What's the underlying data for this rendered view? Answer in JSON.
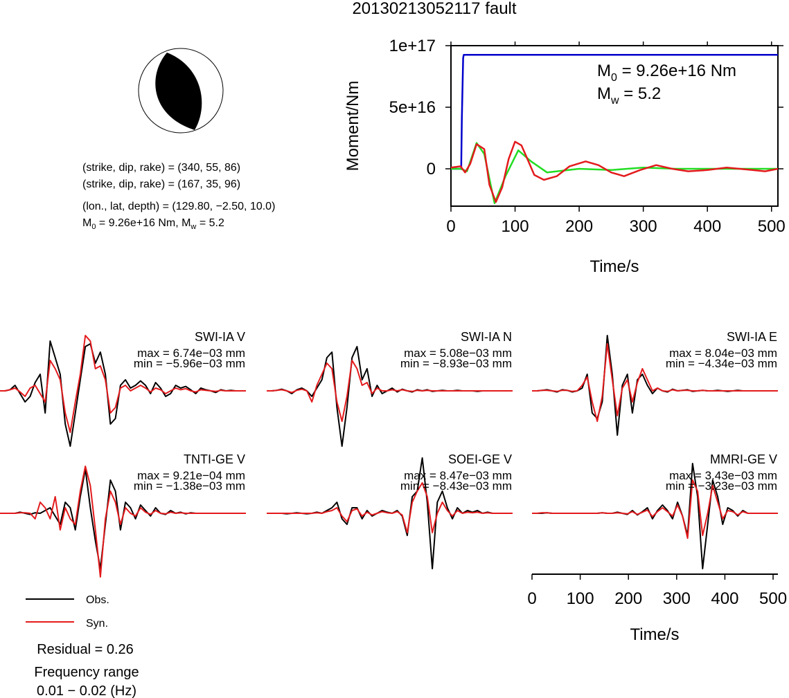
{
  "title": "20130213052117 fault",
  "info": {
    "np1": "(strike, dip, rake) = (340, 55, 86)",
    "np2": "(strike, dip, rake) = (167, 35, 96)",
    "location": "(lon., lat, depth) = (129.80, −2.50, 10.0)",
    "moment_line": {
      "m0": "M",
      "m0_sub": "0",
      "m0_rest": " = 9.26e+16 Nm, M",
      "mw_sub": "w",
      "mw_rest": " = 5.2"
    }
  },
  "legend": {
    "obs": "Obs.",
    "syn": "Syn."
  },
  "residual": "Residual = 0.26",
  "freq": {
    "label": "Frequency range",
    "range": "0.01 − 0.02 (Hz)"
  },
  "colors": {
    "obs": "#000000",
    "syn": "#e31a1c",
    "cumulative": "#0000cc",
    "rate_green": "#22dd22",
    "rate_red": "#e31a1c"
  },
  "chart_data": [
    {
      "type": "line",
      "title": "",
      "xlabel": "Time/s",
      "ylabel": "Moment/Nm",
      "xlim": [
        0,
        510
      ],
      "ylim": [
        -3e+16,
        1e+17
      ],
      "xticks": [
        "0",
        "100",
        "200",
        "300",
        "400",
        "500"
      ],
      "yticks": [
        "1e+17",
        "5e+16",
        "0"
      ],
      "ytick_values": [
        1e+17,
        5e+16,
        0
      ],
      "annotation_m0": {
        "sym": "M",
        "sub": "0",
        "rest": " = 9.26e+16 Nm"
      },
      "annotation_mw": {
        "sym": "M",
        "sub": "w",
        "rest": " = 5.2"
      },
      "series": [
        {
          "color": "#0000cc",
          "x": [
            0,
            16,
            17,
            19,
            20,
            510
          ],
          "y": [
            0,
            0,
            4e+16,
            9e+16,
            9.26e+16,
            9.26e+16
          ]
        },
        {
          "color": "#22dd22",
          "x": [
            0,
            15,
            25,
            40,
            52,
            68,
            85,
            105,
            125,
            150,
            200,
            250,
            300,
            350,
            400,
            450,
            500,
            510
          ],
          "y": [
            0,
            0,
            -2000000000000000.0,
            2.1e+16,
            1.2e+16,
            -2.8e+16,
            -6000000000000000.0,
            1.5e+16,
            6000000000000000.0,
            -3000000000000000.0,
            0.0,
            -1000000000000000.0,
            1000000000000000.0,
            0,
            0,
            0,
            0,
            0
          ]
        },
        {
          "color": "#e31a1c",
          "x": [
            0,
            15,
            22,
            30,
            40,
            52,
            60,
            70,
            80,
            90,
            100,
            110,
            120,
            130,
            145,
            165,
            185,
            210,
            230,
            250,
            270,
            295,
            320,
            345,
            370,
            400,
            430,
            450,
            470,
            490,
            510
          ],
          "y": [
            1000000000000000.0,
            2000000000000000.0,
            -3000000000000000.0,
            4000000000000000.0,
            2e+16,
            1.6e+16,
            -1.3e+16,
            -2.7e+16,
            -1.5e+16,
            8000000000000000.0,
            2.2e+16,
            1.9e+16,
            7000000000000000.0,
            -5000000000000000.0,
            -9000000000000000.0,
            -6000000000000000.0,
            2000000000000000.0,
            6000000000000000.0,
            3000000000000000.0,
            -3000000000000000.0,
            -6000000000000000.0,
            -1000000000000000.0,
            3000000000000000.0,
            0.0,
            -2000000000000000.0,
            -1000000000000000.0,
            1000000000000000.0,
            0.0,
            -1000000000000000.0,
            -2000000000000000.0,
            0.0
          ]
        }
      ]
    },
    {
      "type": "line",
      "title": "",
      "xlabel": "Time/s",
      "ylabel": "",
      "xlim": [
        0,
        510
      ],
      "xticks": [
        "0",
        "100",
        "200",
        "300",
        "400",
        "500"
      ],
      "panels": [
        {
          "label": "SWI-IA V",
          "max": "max = 6.74e−03 mm",
          "min": "min = −5.96e−03 mm",
          "obs": [
            0,
            0,
            0.02,
            0.1,
            -0.05,
            -0.2,
            -0.1,
            0.15,
            0.3,
            -0.4,
            0.9,
            0.6,
            0.3,
            -0.6,
            -1.0,
            -0.4,
            0.2,
            0.8,
            0.85,
            0.5,
            0.7,
            0.3,
            -0.6,
            -0.5,
            0.1,
            0.2,
            0.05,
            0.1,
            0.18,
            0.1,
            -0.05,
            0.15,
            0.05,
            -0.1,
            -0.05,
            0.1,
            0.05,
            0.08,
            0.02,
            -0.05,
            0.05,
            0.02,
            0,
            -0.03,
            0.02,
            0,
            0.01,
            0,
            0,
            0
          ],
          "syn": [
            0,
            0,
            0.02,
            0.05,
            -0.02,
            -0.1,
            0.05,
            0.1,
            -0.05,
            -0.2,
            0.55,
            0.4,
            0.2,
            -0.4,
            -0.75,
            -0.2,
            0.3,
            1.0,
            0.9,
            0.4,
            0.45,
            0.2,
            -0.4,
            -0.3,
            0.05,
            0.1,
            0,
            0.05,
            0.1,
            0.05,
            -0.02,
            0.05,
            0.02,
            -0.05,
            0,
            0.05,
            0.02,
            0.04,
            0,
            -0.02,
            0.02,
            0.01,
            0,
            -0.01,
            0.01,
            0,
            0,
            0,
            0,
            0
          ]
        },
        {
          "label": "SWI-IA N",
          "max": "max = 5.08e−03 mm",
          "min": "min = −8.93e−03 mm",
          "obs": [
            0,
            0,
            0.01,
            0.03,
            0,
            -0.05,
            0.02,
            0.05,
            0,
            -0.1,
            0.05,
            0.2,
            0.6,
            0.7,
            -0.3,
            -1.0,
            -0.3,
            0.6,
            0.8,
            0.2,
            0.4,
            -0.1,
            0.1,
            -0.05,
            0,
            0.05,
            -0.02,
            0.03,
            0,
            -0.02,
            0.02,
            0,
            0.02,
            -0.01,
            0,
            0.01,
            0,
            0,
            0.01,
            0,
            0,
            0,
            -0.01,
            0,
            0,
            0,
            0,
            0,
            0,
            0
          ],
          "syn": [
            0,
            0,
            0.01,
            0.02,
            0,
            -0.03,
            0.01,
            0.03,
            0,
            -0.2,
            0.1,
            0.3,
            0.5,
            0.4,
            -0.2,
            -0.55,
            -0.1,
            0.55,
            0.4,
            0.1,
            0.15,
            -0.05,
            0.05,
            0,
            0,
            0.02,
            0,
            0.02,
            0,
            -0.01,
            0.01,
            0,
            0.01,
            0,
            0,
            0,
            0,
            0,
            0,
            0,
            0,
            0,
            0,
            0,
            0,
            0,
            0,
            0,
            0,
            0
          ]
        },
        {
          "label": "SWI-IA E",
          "max": "max = 8.04e−03 mm",
          "min": "min = −4.34e−03 mm",
          "obs": [
            0,
            0,
            0.01,
            0.02,
            0,
            -0.02,
            0.02,
            0.01,
            -0.02,
            0,
            0.05,
            0.3,
            -0.4,
            -0.5,
            -0.2,
            1.0,
            0.3,
            -0.8,
            0.1,
            0.3,
            -0.4,
            0.2,
            0.3,
            0.1,
            -0.05,
            0.05,
            0,
            -0.02,
            0.03,
            0,
            0.01,
            0.02,
            -0.01,
            0,
            0.01,
            0,
            0,
            0.01,
            0,
            -0.01,
            0,
            0.01,
            0,
            0,
            0,
            0,
            0,
            0,
            0,
            0
          ],
          "syn": [
            0,
            0,
            0.01,
            0.01,
            0,
            -0.01,
            0.01,
            0.01,
            -0.01,
            0,
            0.1,
            0.25,
            -0.2,
            -0.55,
            -0.1,
            0.85,
            0.2,
            -0.45,
            0.05,
            0.2,
            -0.2,
            0.15,
            0.4,
            0.2,
            0,
            0.05,
            0,
            -0.01,
            0.02,
            0,
            0.01,
            0.01,
            0,
            0,
            0.01,
            0,
            0,
            0,
            0,
            0,
            0,
            0,
            0,
            0,
            0,
            0,
            0,
            0,
            0,
            0
          ]
        },
        {
          "label": "TNTI-GE V",
          "max": "max = 9.21e−04 mm",
          "min": "min = −1.38e−03 mm",
          "obs": [
            0,
            0,
            0,
            0,
            0.02,
            0,
            -0.02,
            0.01,
            0,
            0.05,
            0.1,
            -0.05,
            -0.2,
            0.2,
            0.1,
            -0.3,
            0.3,
            0.8,
            0.1,
            -0.5,
            -1.0,
            -0.2,
            0.6,
            0.4,
            -0.3,
            0.2,
            0.1,
            -0.1,
            0.15,
            0.05,
            -0.05,
            0.1,
            0,
            -0.02,
            0.05,
            0,
            0.02,
            -0.01,
            0.01,
            0,
            0,
            0,
            0,
            0,
            0,
            0,
            0,
            0,
            0,
            0
          ],
          "syn": [
            0,
            0,
            0,
            0,
            0.01,
            0.01,
            0,
            -0.1,
            0.2,
            0.1,
            -0.1,
            0.3,
            -0.3,
            0.1,
            -0.1,
            -0.2,
            0.4,
            0.85,
            0.5,
            -0.3,
            -1.15,
            -0.1,
            0.4,
            0.2,
            -0.2,
            0.1,
            0,
            -0.05,
            0.1,
            0.02,
            -0.02,
            0.05,
            0,
            -0.01,
            0.02,
            0,
            0.01,
            0,
            0,
            0,
            0,
            0,
            0,
            0,
            0,
            0,
            0,
            0,
            0,
            0
          ]
        },
        {
          "label": "SOEI-GE V",
          "max": "max = 8.47e−03 mm",
          "min": "min = −8.43e−03 mm",
          "obs": [
            0,
            0,
            0,
            0,
            -0.01,
            0,
            0.01,
            0,
            -0.01,
            0,
            0.02,
            0,
            0.05,
            0.1,
            0.2,
            -0.1,
            -0.2,
            0.1,
            0.1,
            -0.1,
            0.05,
            -0.05,
            0,
            0.05,
            0.02,
            0,
            0.05,
            -0.05,
            -0.4,
            0.3,
            0.4,
            1.0,
            0.2,
            -1.0,
            0.2,
            0.4,
            0.1,
            -0.1,
            0.1,
            0,
            0.05,
            0.02,
            0.05,
            0,
            0.02,
            0,
            0,
            0,
            0,
            0
          ],
          "syn": [
            0,
            0,
            0,
            0,
            0,
            0,
            0,
            0,
            0,
            0,
            0.01,
            0,
            0.03,
            0.05,
            0.1,
            -0.05,
            -0.15,
            0.05,
            0.08,
            -0.05,
            0.02,
            -0.03,
            0,
            0.03,
            0.01,
            0,
            0.03,
            -0.03,
            -0.35,
            0.2,
            0.4,
            0.55,
            0.3,
            -0.35,
            0,
            0.2,
            0.05,
            -0.05,
            0.05,
            0,
            0.02,
            0.01,
            0.02,
            0,
            0.01,
            0,
            0,
            0,
            0,
            0
          ]
        },
        {
          "label": "MMRI-GE V",
          "max": "max = 3.43e−03 mm",
          "min": "min = −3.23e−03 mm",
          "obs": [
            0,
            0,
            0,
            0.01,
            0,
            0,
            0,
            0,
            0,
            0,
            0,
            0,
            0,
            0,
            0.01,
            0,
            0,
            0.02,
            0,
            -0.02,
            0.05,
            -0.03,
            0.03,
            0.1,
            -0.1,
            0.05,
            0.15,
            0.05,
            -0.1,
            0.2,
            -0.05,
            -0.4,
            0.9,
            0.3,
            -1.0,
            -0.2,
            0.6,
            0.3,
            -0.2,
            0.1,
            0.05,
            -0.05,
            0.05,
            0,
            0,
            0,
            0,
            0,
            0,
            0
          ],
          "syn": [
            0,
            0,
            0.01,
            0.01,
            0,
            0,
            0,
            0,
            0,
            0,
            0,
            0,
            0,
            0,
            0.01,
            0,
            0,
            0.01,
            0,
            -0.01,
            0.03,
            -0.02,
            0.02,
            0.06,
            -0.06,
            0.03,
            0.1,
            0.03,
            -0.05,
            0.15,
            -0.05,
            -0.45,
            0.6,
            0.4,
            -0.4,
            0,
            0.5,
            0.2,
            -0.1,
            0.05,
            0.03,
            -0.03,
            0.03,
            0,
            0,
            0,
            0,
            0,
            0,
            0
          ]
        }
      ]
    }
  ]
}
